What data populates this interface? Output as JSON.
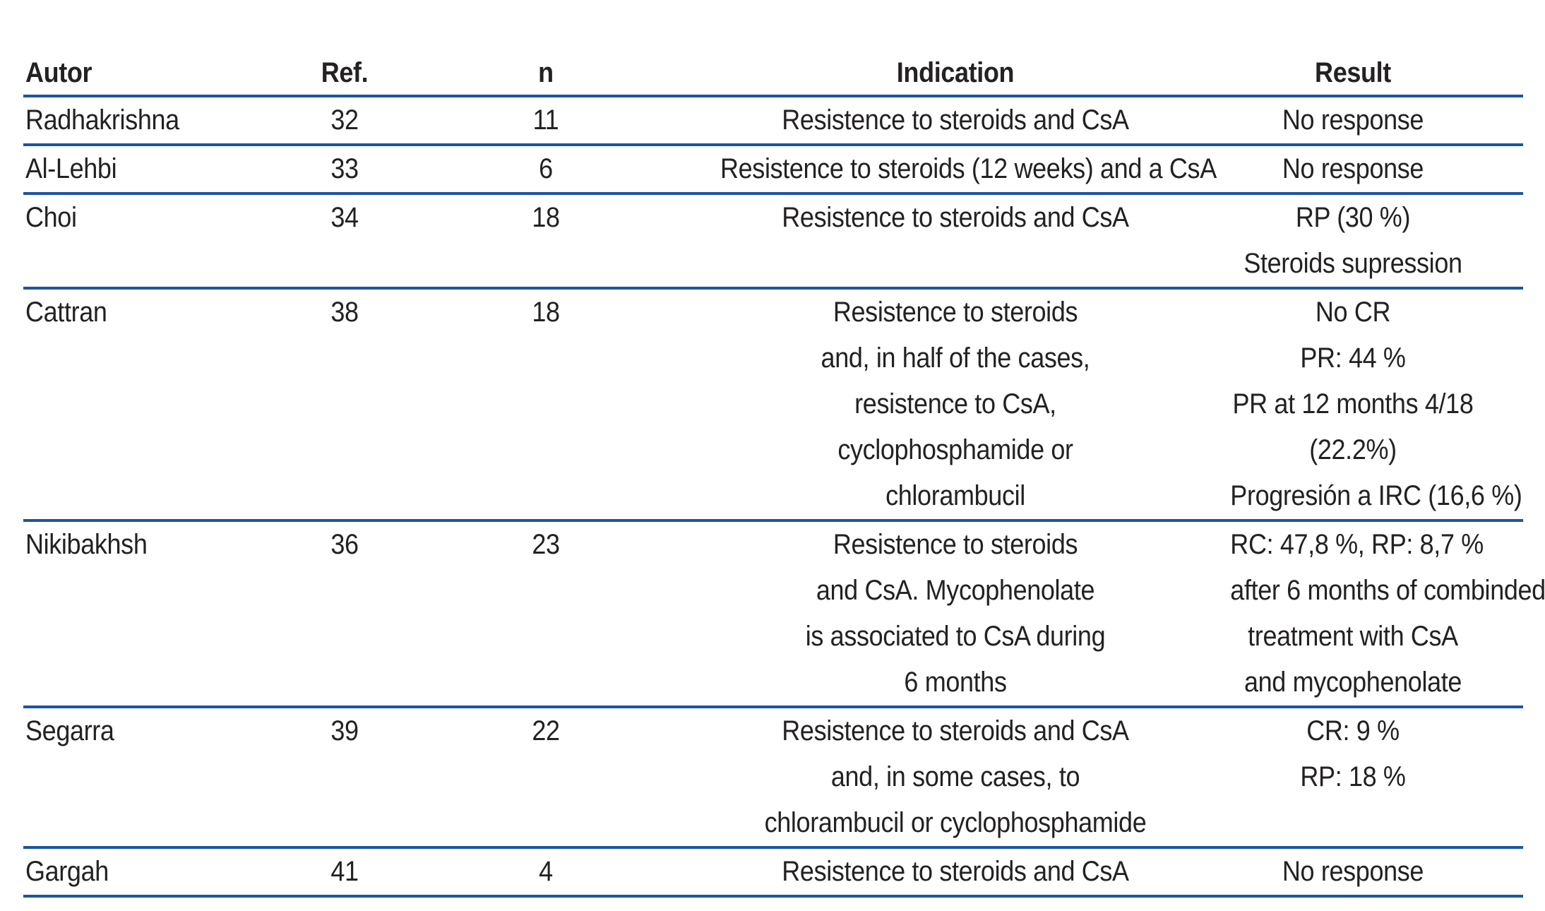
{
  "colors": {
    "rule": "#1b55a0",
    "text": "#242122"
  },
  "table": {
    "headers": [
      "Autor",
      "Ref.",
      "n",
      "Indication",
      "Result"
    ],
    "rows": [
      {
        "autor": "Radhakrishna",
        "ref": "32",
        "n": "11",
        "indication": [
          "Resistence to steroids and CsA"
        ],
        "result": [
          "No response"
        ]
      },
      {
        "autor": "Al-Lehbi",
        "ref": "33",
        "n": "6",
        "indication": [
          "Resistence to steroids (12 weeks) and a CsA"
        ],
        "result": [
          "No response"
        ]
      },
      {
        "autor": "Choi",
        "ref": "34",
        "n": "18",
        "indication": [
          "Resistence to steroids and CsA"
        ],
        "result": [
          "RP (30 %)",
          "Steroids supression"
        ]
      },
      {
        "autor": "Cattran",
        "ref": "38",
        "n": "18",
        "indication": [
          "Resistence to steroids",
          "and, in half of the cases,",
          "resistence to CsA,",
          "cyclophosphamide or",
          "chlorambucil"
        ],
        "result": [
          "No CR",
          "PR: 44 %",
          "PR at 12 months 4/18",
          "(22.2%)",
          "Progresión a IRC (16,6 %)"
        ]
      },
      {
        "autor": "Nikibakhsh",
        "ref": "36",
        "n": "23",
        "indication": [
          "Resistence to steroids",
          "and CsA. Mycophenolate",
          "is associated to CsA during",
          "6 months"
        ],
        "result": [
          "RC: 47,8 %, RP: 8,7 %",
          "after 6 months of combinded",
          "treatment with CsA",
          "and mycophenolate"
        ]
      },
      {
        "autor": "Segarra",
        "ref": "39",
        "n": "22",
        "indication": [
          "Resistence to steroids and CsA",
          "and, in some cases, to",
          "chlorambucil or cyclophosphamide"
        ],
        "result": [
          "CR: 9 %",
          "RP: 18 %"
        ]
      },
      {
        "autor": "Gargah",
        "ref": "41",
        "n": "4",
        "indication": [
          "Resistence to steroids and CsA"
        ],
        "result": [
          "No response"
        ]
      }
    ]
  }
}
